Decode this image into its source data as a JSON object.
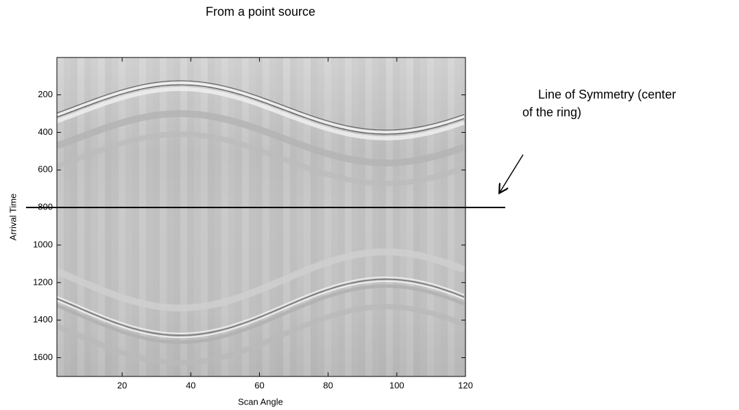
{
  "chart_data": {
    "type": "image",
    "title": "From a point source",
    "x_label": "Scan Angle",
    "y_label": "Arrival Time",
    "xlim": [
      1,
      120
    ],
    "xticks": [
      20,
      40,
      60,
      80,
      100,
      120
    ],
    "ylim": [
      1,
      1700
    ],
    "yticks": [
      200,
      400,
      600,
      800,
      1000,
      1200,
      1400,
      1600
    ],
    "y_reversed": true,
    "colormap": "gray",
    "symmetry_line": 800,
    "annotation": [
      "Line of Symmetry (center",
      "of the ring)"
    ]
  }
}
